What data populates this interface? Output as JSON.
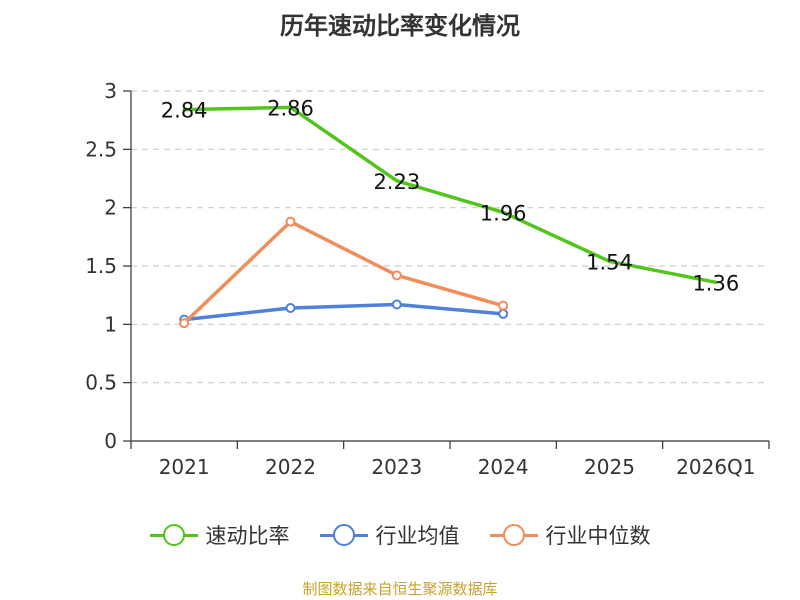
{
  "chart_data": {
    "type": "line",
    "title": "历年速动比率变化情况",
    "categories": [
      "2021",
      "2022",
      "2023",
      "2024",
      "2025",
      "2026Q1"
    ],
    "ylim": [
      0,
      3
    ],
    "yticks": [
      "0",
      "0.5",
      "1",
      "1.5",
      "2",
      "2.5",
      "3"
    ],
    "grid": true,
    "legend_position": "bottom",
    "series": [
      {
        "name": "速动比率",
        "color": "#52c41a",
        "values": [
          2.84,
          2.86,
          2.23,
          1.96,
          1.54,
          1.36
        ],
        "labels": [
          "2.84",
          "2.86",
          "2.23",
          "1.96",
          "1.54",
          "1.36"
        ],
        "show_labels": true,
        "markers": false
      },
      {
        "name": "行业均值",
        "color": "#4f81d8",
        "values": [
          1.04,
          1.14,
          1.17,
          1.09,
          null,
          null
        ],
        "show_labels": false,
        "markers": true
      },
      {
        "name": "行业中位数",
        "color": "#f28c5a",
        "values": [
          1.01,
          1.88,
          1.42,
          1.16,
          null,
          null
        ],
        "show_labels": false,
        "markers": true
      }
    ]
  },
  "source": "制图数据来自恒生聚源数据库"
}
